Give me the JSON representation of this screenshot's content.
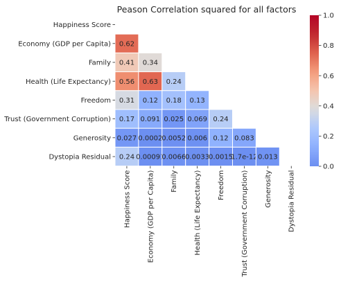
{
  "chart_data": {
    "type": "heatmap",
    "title": "Peason Correlation squared for all factors",
    "xlabel": "",
    "ylabel": "",
    "row_labels": [
      "Happiness Score",
      "Economy (GDP per Capita)",
      "Family",
      "Health (Life Expectancy)",
      "Freedom",
      "Trust (Government Corruption)",
      "Generosity",
      "Dystopia Residual"
    ],
    "col_labels": [
      "Happiness Score",
      "Economy (GDP per Capita)",
      "Family",
      "Health (Life Expectancy)",
      "Freedom",
      "Trust (Government Corruption)",
      "Generosity",
      "Dystopia Residual"
    ],
    "mask": "upper triangle including diagonal",
    "cells": [
      [
        null,
        null,
        null,
        null,
        null,
        null,
        null,
        null
      ],
      [
        0.62,
        null,
        null,
        null,
        null,
        null,
        null,
        null
      ],
      [
        0.41,
        0.34,
        null,
        null,
        null,
        null,
        null,
        null
      ],
      [
        0.56,
        0.63,
        0.24,
        null,
        null,
        null,
        null,
        null
      ],
      [
        0.31,
        0.12,
        0.18,
        0.13,
        null,
        null,
        null,
        null
      ],
      [
        0.17,
        0.091,
        0.025,
        0.069,
        0.24,
        null,
        null,
        null
      ],
      [
        0.027,
        0.0002,
        0.0052,
        0.006,
        0.12,
        0.083,
        null,
        null
      ],
      [
        0.24,
        0.00091,
        0.0066,
        0.0033,
        0.0015,
        1.7e-12,
        0.013,
        null
      ]
    ],
    "cell_labels": [
      [
        null,
        null,
        null,
        null,
        null,
        null,
        null,
        null
      ],
      [
        "0.62",
        null,
        null,
        null,
        null,
        null,
        null,
        null
      ],
      [
        "0.41",
        "0.34",
        null,
        null,
        null,
        null,
        null,
        null
      ],
      [
        "0.56",
        "0.63",
        "0.24",
        null,
        null,
        null,
        null,
        null
      ],
      [
        "0.31",
        "0.12",
        "0.18",
        "0.13",
        null,
        null,
        null,
        null
      ],
      [
        "0.17",
        "0.091",
        "0.025",
        "0.069",
        "0.24",
        null,
        null,
        null
      ],
      [
        "0.027",
        "0.0002",
        "0.0052",
        "0.006",
        "0.12",
        "0.083",
        null,
        null
      ],
      [
        "0.24",
        "0.00091",
        "0.0066",
        "0.0033",
        "0.0015",
        "1.7e-12",
        "0.013",
        null
      ]
    ],
    "colorbar": {
      "colormap": "coolwarm",
      "vmin": 0.0,
      "vmax": 1.0,
      "ticks": [
        "0.0",
        "0.2",
        "0.4",
        "0.6",
        "0.8",
        "1.0"
      ]
    }
  }
}
